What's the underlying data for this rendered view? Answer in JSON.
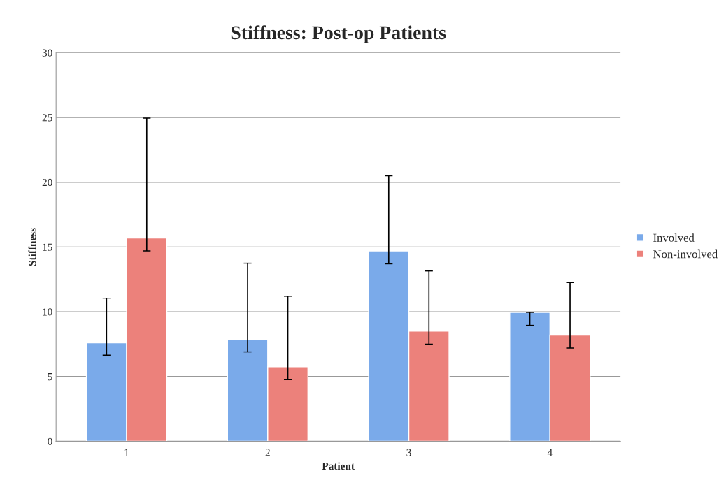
{
  "chart_data": {
    "type": "bar",
    "title": "Stiffness: Post-op Patients",
    "xlabel": "Patient",
    "ylabel": "Stiffness",
    "categories": [
      "1",
      "2",
      "3",
      "4"
    ],
    "series": [
      {
        "name": "Involved",
        "color": "#7aaaea",
        "values": [
          7.6,
          7.85,
          14.7,
          9.95
        ],
        "errors": [
          [
            6.65,
            11.05
          ],
          [
            6.9,
            13.75
          ],
          [
            13.7,
            20.5
          ],
          [
            8.95,
            9.95
          ]
        ]
      },
      {
        "name": "Non-involved",
        "color": "#ec817b",
        "values": [
          15.7,
          5.75,
          8.5,
          8.2
        ],
        "errors": [
          [
            14.7,
            24.95
          ],
          [
            4.75,
            11.2
          ],
          [
            7.5,
            13.15
          ],
          [
            7.2,
            12.25
          ]
        ]
      }
    ],
    "ylim": [
      0,
      30
    ],
    "yticks": [
      0,
      5,
      10,
      15,
      20,
      25,
      30
    ],
    "grid": "y",
    "legend": "right"
  }
}
